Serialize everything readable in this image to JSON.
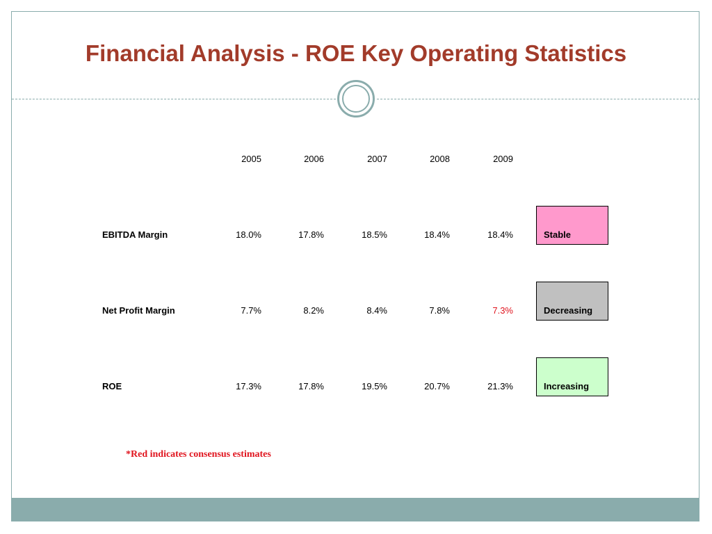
{
  "slide": {
    "title": "Financial Analysis - ROE Key Operating Statistics",
    "footnote": "*Red indicates consensus estimates",
    "colors": {
      "title": "#a23b2a",
      "frame": "#8aacac",
      "estimate": "#e0141e"
    }
  },
  "table": {
    "years": [
      "2005",
      "2006",
      "2007",
      "2008",
      "2009"
    ],
    "rows": [
      {
        "label": "EBITDA Margin",
        "values": [
          "18.0%",
          "17.8%",
          "18.5%",
          "18.4%",
          "18.4%"
        ],
        "estimate_flags": [
          false,
          false,
          false,
          false,
          false
        ],
        "status": "Stable",
        "status_color": "#ff99cc"
      },
      {
        "label": "Net Profit Margin",
        "values": [
          "7.7%",
          "8.2%",
          "8.4%",
          "7.8%",
          "7.3%"
        ],
        "estimate_flags": [
          false,
          false,
          false,
          false,
          true
        ],
        "status": "Decreasing",
        "status_color": "#c0c0c0"
      },
      {
        "label": "ROE",
        "values": [
          "17.3%",
          "17.8%",
          "19.5%",
          "20.7%",
          "21.3%"
        ],
        "estimate_flags": [
          false,
          false,
          false,
          false,
          false
        ],
        "status": "Increasing",
        "status_color": "#ccffcc"
      }
    ]
  }
}
